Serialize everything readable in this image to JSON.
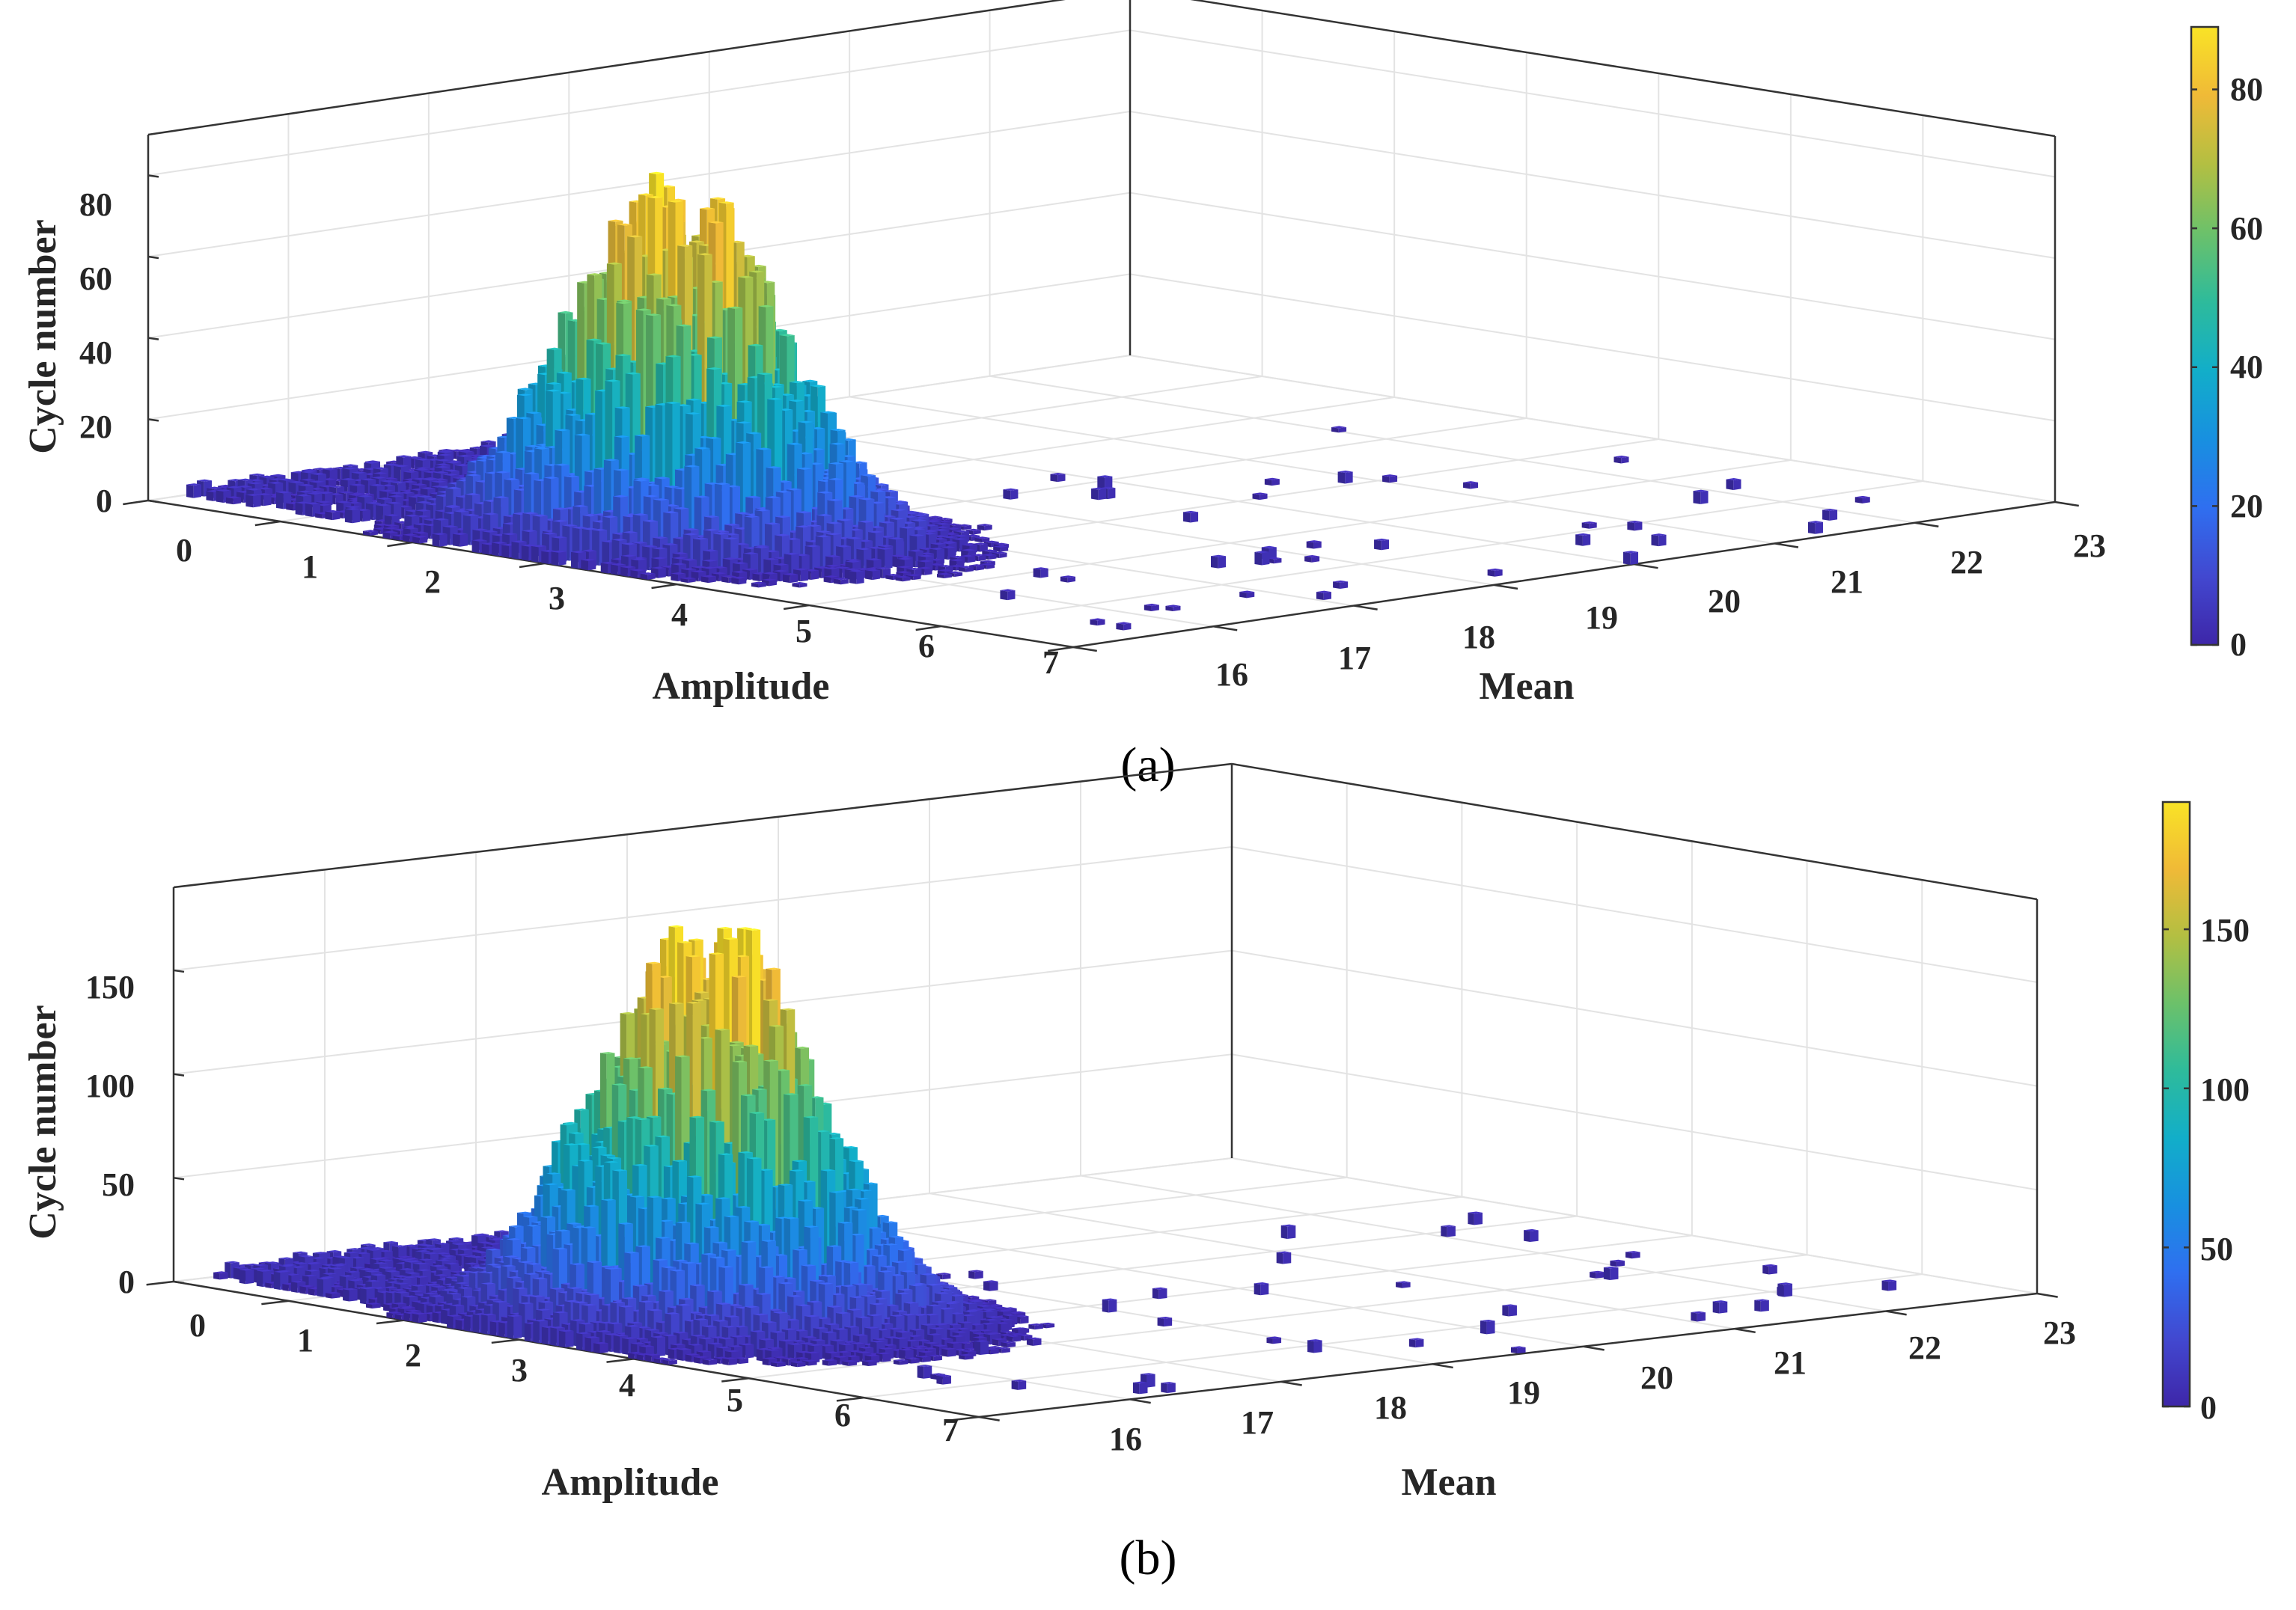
{
  "figure": {
    "captions": [
      "(a)",
      "(b)"
    ],
    "colormap": [
      "#3e26a8",
      "#4248d0",
      "#2f6ff0",
      "#1890e0",
      "#12aec9",
      "#2ebb9b",
      "#6cc16a",
      "#b3bf42",
      "#f0ba37",
      "#f9e326"
    ]
  },
  "chart_data": [
    {
      "type": "bar3d",
      "title": "",
      "caption": "(a)",
      "xlabel": "Amplitude",
      "ylabel": "Mean",
      "zlabel": "Cycle number",
      "x_ticks": [
        "0",
        "1",
        "2",
        "3",
        "4",
        "5",
        "6",
        "7"
      ],
      "y_ticks": [
        "16",
        "17",
        "18",
        "19",
        "20",
        "21",
        "22",
        "23"
      ],
      "z_ticks": [
        "0",
        "20",
        "40",
        "60",
        "80"
      ],
      "colorbar_ticks": [
        "0",
        "20",
        "40",
        "60",
        "80"
      ],
      "xlim": [
        0,
        7
      ],
      "ylim": [
        16,
        23
      ],
      "zlim": [
        0,
        90
      ],
      "clim": [
        0,
        89
      ],
      "peak": {
        "amplitude": 2.8,
        "mean": 17.1,
        "cycle_number": 89
      },
      "distribution": {
        "amplitude_center": 2.8,
        "amplitude_spread": 0.65,
        "mean_center": 17.1,
        "mean_spread": 0.45
      },
      "ridge": "Low counts along Mean 16–18.5 for Amplitude 0–2.5, sparse single bars toward Mean 21–23 at Amplitude 5–7",
      "grid": true
    },
    {
      "type": "bar3d",
      "title": "",
      "caption": "(b)",
      "xlabel": "Amplitude",
      "ylabel": "Mean",
      "zlabel": "Cycle number",
      "x_ticks": [
        "0",
        "1",
        "2",
        "3",
        "4",
        "5",
        "6",
        "7"
      ],
      "y_ticks": [
        "16",
        "17",
        "18",
        "19",
        "20",
        "21",
        "22",
        "23"
      ],
      "z_ticks": [
        "0",
        "50",
        "100",
        "150"
      ],
      "colorbar_ticks": [
        "0",
        "50",
        "100",
        "150"
      ],
      "xlim": [
        0,
        7
      ],
      "ylim": [
        16,
        23
      ],
      "zlim": [
        0,
        190
      ],
      "clim": [
        0,
        190
      ],
      "peak": {
        "amplitude": 3.0,
        "mean": 17.2,
        "cycle_number": 188
      },
      "distribution": {
        "amplitude_center": 3.0,
        "amplitude_spread": 0.7,
        "mean_center": 17.2,
        "mean_spread": 0.5
      },
      "ridge": "Low counts along Mean 16–18.5 for Amplitude 0–2.5, sparse single bars toward Mean 21–23 at Amplitude 5–7",
      "grid": true
    }
  ]
}
